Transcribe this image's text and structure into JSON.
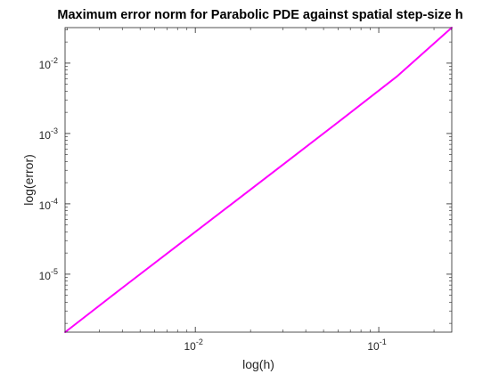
{
  "chart_data": {
    "type": "line",
    "title": "Maximum error norm for Parabolic PDE against spatial step-size h",
    "xlabel": "log(h)",
    "ylabel": "log(error)",
    "xscale": "log",
    "yscale": "log",
    "xlim": [
      0.00195,
      0.25
    ],
    "ylim": [
      1.5e-06,
      0.032
    ],
    "grid": false,
    "series": [
      {
        "color": "#ff00ff",
        "x": [
          0.001953125,
          0.00390625,
          0.0078125,
          0.015625,
          0.03125,
          0.0625,
          0.125,
          0.25
        ],
        "y": [
          1.5e-06,
          6.1e-06,
          2.44e-05,
          9.75e-05,
          0.00039,
          0.00157,
          0.0064,
          0.032
        ]
      }
    ],
    "xticks": [
      {
        "value": 0.01,
        "base": "10",
        "exp": "-2"
      },
      {
        "value": 0.1,
        "base": "10",
        "exp": "-1"
      }
    ],
    "yticks": [
      {
        "value": 1e-05,
        "base": "10",
        "exp": "-5"
      },
      {
        "value": 0.0001,
        "base": "10",
        "exp": "-4"
      },
      {
        "value": 0.001,
        "base": "10",
        "exp": "-3"
      },
      {
        "value": 0.01,
        "base": "10",
        "exp": "-2"
      }
    ]
  }
}
